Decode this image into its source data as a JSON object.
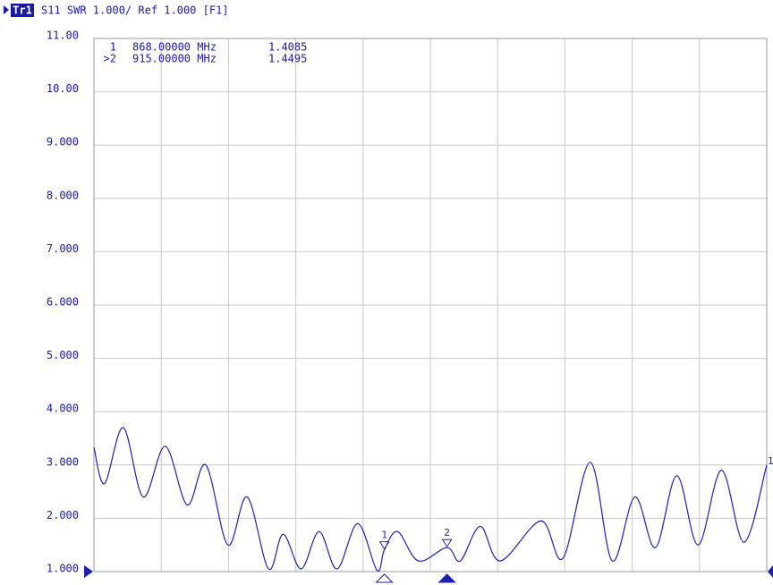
{
  "header": {
    "trace": "Tr1",
    "text": "S11 SWR 1.000/ Ref 1.000 [F1]"
  },
  "chart_data": {
    "type": "line",
    "x": [
      650,
      658,
      672,
      687,
      703.5,
      720,
      734,
      750.5,
      765,
      781,
      792,
      805.5,
      819,
      832.5,
      848,
      862.5,
      868,
      878,
      893.5,
      915,
      925,
      940,
      955,
      985.5,
      1002,
      1022.5,
      1039,
      1056,
      1071.5,
      1087.5,
      1103.5,
      1121,
      1138,
      1155
    ],
    "series": [
      {
        "name": "1",
        "color": "#1f1fb0",
        "values": [
          3.33,
          2.65,
          3.7,
          2.4,
          3.35,
          2.25,
          3.0,
          1.5,
          2.4,
          1.05,
          1.7,
          1.05,
          1.75,
          1.05,
          1.9,
          1.02,
          1.4085,
          1.75,
          1.2,
          1.4495,
          1.2,
          1.85,
          1.2,
          1.95,
          1.25,
          3.05,
          1.2,
          2.4,
          1.45,
          2.8,
          1.5,
          2.9,
          1.55,
          3.0
        ]
      }
    ],
    "xlim": [
      650,
      1155
    ],
    "ylim": [
      1,
      11
    ],
    "yticks": [
      {
        "value": 1,
        "label": "1.000"
      },
      {
        "value": 2,
        "label": "2.000"
      },
      {
        "value": 3,
        "label": "3.000"
      },
      {
        "value": 4,
        "label": "4.000"
      },
      {
        "value": 5,
        "label": "5.000"
      },
      {
        "value": 6,
        "label": "6.000"
      },
      {
        "value": 7,
        "label": "7.000"
      },
      {
        "value": 8,
        "label": "8.000"
      },
      {
        "value": 9,
        "label": "9.000"
      },
      {
        "value": 10,
        "label": "10.00"
      },
      {
        "value": 11,
        "label": "11.00"
      }
    ],
    "x_divisions": 10,
    "grid": true,
    "markers": [
      {
        "label": "1",
        "readout": "1",
        "x": 868,
        "x_label": "868.00000 MHz",
        "value": 1.4085
      },
      {
        "label": "2",
        "readout": ">2",
        "x": 915,
        "x_label": "915.00000 MHz",
        "value": 1.4495
      }
    ]
  }
}
